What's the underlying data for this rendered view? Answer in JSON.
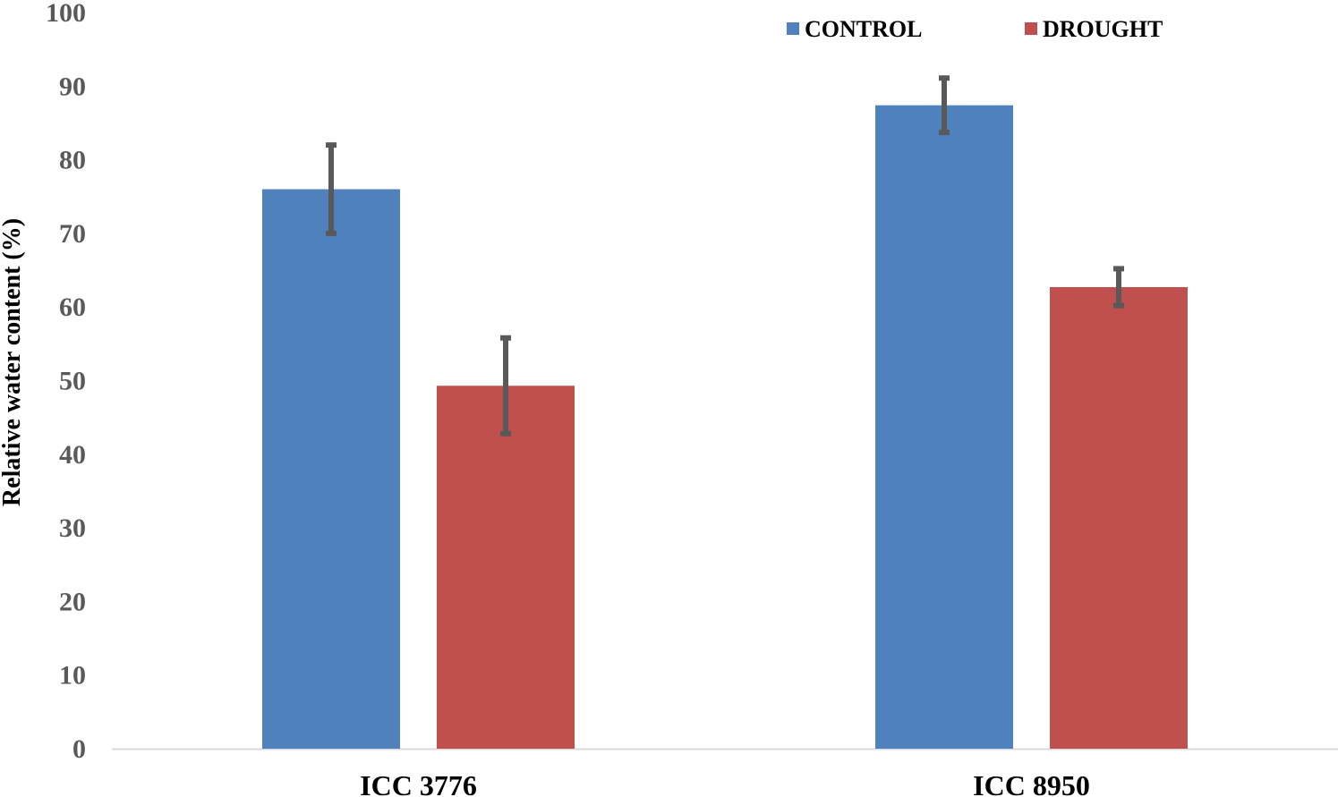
{
  "chart_data": {
    "type": "bar",
    "title": "",
    "xlabel": "",
    "ylabel": "Relative water content (%)",
    "ylim": [
      0,
      100
    ],
    "yticks": [
      "0",
      "10",
      "20",
      "30",
      "40",
      "50",
      "60",
      "70",
      "80",
      "90",
      "100"
    ],
    "grid": false,
    "legend_position": "top-right",
    "categories": [
      "ICC 3776",
      "ICC 8950"
    ],
    "series": [
      {
        "name": "CONTROL",
        "color": "#4F81BD",
        "values": [
          76.0,
          87.4
        ],
        "errors": [
          6.0,
          3.7
        ]
      },
      {
        "name": "DROUGHT",
        "color": "#C0504D",
        "values": [
          49.3,
          62.7
        ],
        "errors": [
          6.5,
          2.5
        ]
      }
    ],
    "error_bar_color": "#595959",
    "axis_color": "#D9D9D9"
  }
}
